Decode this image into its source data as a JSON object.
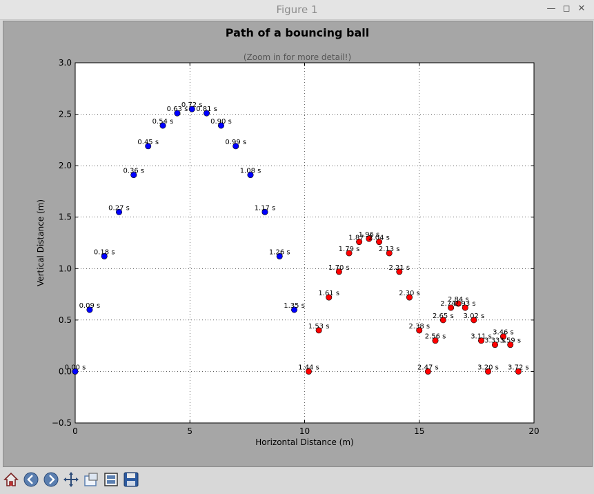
{
  "window": {
    "title": "Figure 1",
    "buttons": [
      {
        "name": "minimize-icon",
        "glyph": "—"
      },
      {
        "name": "maximize-icon",
        "glyph": "◻"
      },
      {
        "name": "close-icon",
        "glyph": "✕"
      }
    ]
  },
  "toolbar": {
    "icons": [
      "home-icon",
      "back-icon",
      "forward-icon",
      "pan-icon",
      "zoom-icon",
      "configure-subplots-icon",
      "save-icon"
    ]
  },
  "chart_data": {
    "type": "scatter",
    "title": "Path of a bouncing ball",
    "subtitle": "(Zoom in for more detail!)",
    "xlabel": "Horizontal Distance (m)",
    "ylabel": "Vertical Distance (m)",
    "xlim": [
      0,
      20
    ],
    "ylim": [
      -0.5,
      3.0
    ],
    "xticks": [
      0,
      5,
      10,
      15,
      20
    ],
    "yticks": [
      -0.5,
      0.0,
      0.5,
      1.0,
      1.5,
      2.0,
      2.5,
      3.0
    ],
    "ytick_labels": [
      "−0.5",
      "0.0",
      "0.5",
      "1.0",
      "1.5",
      "2.0",
      "2.5",
      "3.0"
    ],
    "grid": true,
    "series": [
      {
        "color": "#0000ff",
        "points": [
          {
            "x": 0.0,
            "y": 0.0,
            "label": "0.00 s"
          },
          {
            "x": 0.63,
            "y": 0.6,
            "label": "0.09 s"
          },
          {
            "x": 1.27,
            "y": 1.12,
            "label": "0.18 s"
          },
          {
            "x": 1.91,
            "y": 1.55,
            "label": "0.27 s"
          },
          {
            "x": 2.55,
            "y": 1.91,
            "label": "0.36 s"
          },
          {
            "x": 3.18,
            "y": 2.19,
            "label": "0.45 s"
          },
          {
            "x": 3.82,
            "y": 2.39,
            "label": "0.54 s"
          },
          {
            "x": 4.45,
            "y": 2.51,
            "label": "0.63 s"
          },
          {
            "x": 5.09,
            "y": 2.55,
            "label": "0.72 s"
          },
          {
            "x": 5.73,
            "y": 2.51,
            "label": "0.81 s"
          },
          {
            "x": 6.36,
            "y": 2.39,
            "label": "0.90 s"
          },
          {
            "x": 7.0,
            "y": 2.19,
            "label": "0.99 s"
          },
          {
            "x": 7.64,
            "y": 1.91,
            "label": "1.08 s"
          },
          {
            "x": 8.27,
            "y": 1.55,
            "label": "1.17 s"
          },
          {
            "x": 8.91,
            "y": 1.12,
            "label": "1.26 s"
          },
          {
            "x": 9.55,
            "y": 0.6,
            "label": "1.35 s"
          }
        ]
      },
      {
        "color": "#ff0000",
        "points": [
          {
            "x": 10.18,
            "y": 0.0,
            "label": "1.44 s"
          },
          {
            "x": 10.62,
            "y": 0.4,
            "label": "1.53 s"
          },
          {
            "x": 11.06,
            "y": 0.72,
            "label": "1.61 s"
          },
          {
            "x": 11.5,
            "y": 0.97,
            "label": "1.70 s"
          },
          {
            "x": 11.94,
            "y": 1.15,
            "label": "1.79 s"
          },
          {
            "x": 12.38,
            "y": 1.26,
            "label": "1.87 s"
          },
          {
            "x": 12.81,
            "y": 1.29,
            "label": "1.96 s"
          },
          {
            "x": 13.25,
            "y": 1.26,
            "label": "2.04 s"
          },
          {
            "x": 13.69,
            "y": 1.15,
            "label": "2.13 s"
          },
          {
            "x": 14.13,
            "y": 0.97,
            "label": "2.21 s"
          },
          {
            "x": 14.57,
            "y": 0.72,
            "label": "2.30 s"
          },
          {
            "x": 15.0,
            "y": 0.4,
            "label": "2.38 s"
          },
          {
            "x": 15.38,
            "y": 0.0,
            "label": "2.47 s"
          },
          {
            "x": 15.7,
            "y": 0.3,
            "label": "2.56 s"
          },
          {
            "x": 16.04,
            "y": 0.5,
            "label": "2.65 s"
          },
          {
            "x": 16.38,
            "y": 0.62,
            "label": "2.74 s"
          },
          {
            "x": 16.7,
            "y": 0.66,
            "label": "2.84 s"
          },
          {
            "x": 17.0,
            "y": 0.62,
            "label": "2.93 s"
          },
          {
            "x": 17.38,
            "y": 0.5,
            "label": "3.02 s"
          },
          {
            "x": 17.7,
            "y": 0.3,
            "label": "3.11 s"
          },
          {
            "x": 18.0,
            "y": 0.0,
            "label": "3.20 s"
          },
          {
            "x": 18.3,
            "y": 0.26,
            "label": "3.33 s"
          },
          {
            "x": 18.66,
            "y": 0.34,
            "label": "3.46 s"
          },
          {
            "x": 18.97,
            "y": 0.26,
            "label": "3.59 s"
          },
          {
            "x": 19.32,
            "y": 0.0,
            "label": "3.72 s"
          }
        ]
      }
    ]
  }
}
